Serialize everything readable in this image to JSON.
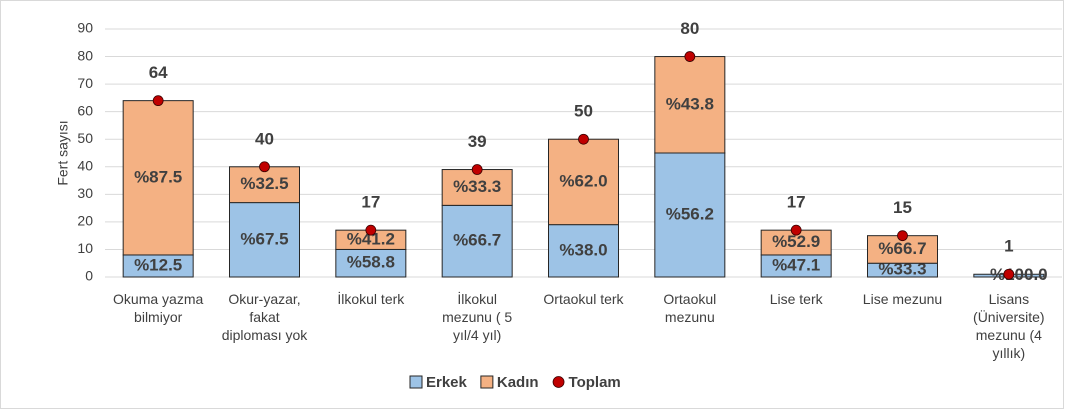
{
  "chart_data": {
    "type": "stacked-bar",
    "y_label": "Fert sayısı",
    "categories": [
      "Okuma yazma\nbilmiyor",
      "Okur-yazar,\nfakat\ndiploması yok",
      "İlkokul terk",
      "İlkokul\nmezunu ( 5\nyıl/4 yıl)",
      "Ortaokul terk",
      "Ortaokul\nmezunu",
      "Lise terk",
      "Lise mezunu",
      "Lisans\n(Üniversite)\nmezunu (4\nyıllık)"
    ],
    "series": [
      {
        "name": "Erkek",
        "color": "#9dc3e6",
        "values": [
          8,
          27,
          10,
          26,
          19,
          45,
          8,
          5,
          1
        ],
        "percent_labels": [
          "%12.5",
          "%67.5",
          "%58.8",
          "%66.7",
          "%38.0",
          "%56.2",
          "%47.1",
          "%33.3",
          "%100.0"
        ]
      },
      {
        "name": "Kadın",
        "color": "#f4b183",
        "values": [
          56,
          13,
          7,
          13,
          31,
          35,
          9,
          10,
          0
        ],
        "percent_labels": [
          "%87.5",
          "%32.5",
          "%41.2",
          "%33.3",
          "%62.0",
          "%43.8",
          "%52.9",
          "%66.7",
          null
        ]
      },
      {
        "name": "Toplam",
        "color": "#c00000",
        "type": "scatter",
        "values": [
          64,
          40,
          17,
          39,
          50,
          80,
          17,
          15,
          1
        ]
      }
    ],
    "ylim": [
      0,
      90
    ],
    "yticks": [
      0,
      10,
      20,
      30,
      40,
      50,
      60,
      70,
      80,
      90
    ],
    "grid": true,
    "legend": "bottom"
  }
}
